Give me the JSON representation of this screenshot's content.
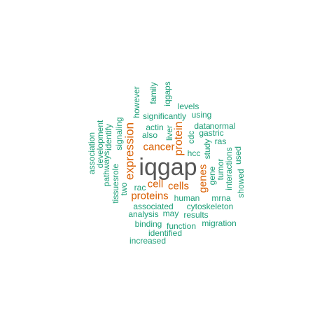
{
  "colors": {
    "primary": "#555555",
    "secondary": "#d95f02",
    "tertiary": "#1b9e77"
  },
  "words": [
    {
      "text": "iqgap",
      "tier": "primary"
    },
    {
      "text": "expression",
      "tier": "secondary"
    },
    {
      "text": "protein",
      "tier": "secondary"
    },
    {
      "text": "cancer",
      "tier": "secondary"
    },
    {
      "text": "cell",
      "tier": "secondary"
    },
    {
      "text": "cells",
      "tier": "secondary"
    },
    {
      "text": "proteins",
      "tier": "secondary"
    },
    {
      "text": "genes",
      "tier": "secondary"
    },
    {
      "text": "family",
      "tier": "tertiary"
    },
    {
      "text": "iqgaps",
      "tier": "tertiary"
    },
    {
      "text": "however",
      "tier": "tertiary"
    },
    {
      "text": "levels",
      "tier": "tertiary"
    },
    {
      "text": "significantly",
      "tier": "tertiary"
    },
    {
      "text": "using",
      "tier": "tertiary"
    },
    {
      "text": "actin",
      "tier": "tertiary"
    },
    {
      "text": "also",
      "tier": "tertiary"
    },
    {
      "text": "liver",
      "tier": "tertiary"
    },
    {
      "text": "data",
      "tier": "tertiary"
    },
    {
      "text": "normal",
      "tier": "tertiary"
    },
    {
      "text": "gastric",
      "tier": "tertiary"
    },
    {
      "text": "cdc",
      "tier": "tertiary"
    },
    {
      "text": "ras",
      "tier": "tertiary"
    },
    {
      "text": "study",
      "tier": "tertiary"
    },
    {
      "text": "hcc",
      "tier": "tertiary"
    },
    {
      "text": "signaling",
      "tier": "tertiary"
    },
    {
      "text": "identify",
      "tier": "tertiary"
    },
    {
      "text": "development",
      "tier": "tertiary"
    },
    {
      "text": "association",
      "tier": "tertiary"
    },
    {
      "text": "pathways",
      "tier": "tertiary"
    },
    {
      "text": "role",
      "tier": "tertiary"
    },
    {
      "text": "tissues",
      "tier": "tertiary"
    },
    {
      "text": "two",
      "tier": "tertiary"
    },
    {
      "text": "rac",
      "tier": "tertiary"
    },
    {
      "text": "gene",
      "tier": "tertiary"
    },
    {
      "text": "tumor",
      "tier": "tertiary"
    },
    {
      "text": "interactions",
      "tier": "tertiary"
    },
    {
      "text": "used",
      "tier": "tertiary"
    },
    {
      "text": "showed",
      "tier": "tertiary"
    },
    {
      "text": "human",
      "tier": "tertiary"
    },
    {
      "text": "mrna",
      "tier": "tertiary"
    },
    {
      "text": "associated",
      "tier": "tertiary"
    },
    {
      "text": "cytoskeleton",
      "tier": "tertiary"
    },
    {
      "text": "analysis",
      "tier": "tertiary"
    },
    {
      "text": "may",
      "tier": "tertiary"
    },
    {
      "text": "results",
      "tier": "tertiary"
    },
    {
      "text": "binding",
      "tier": "tertiary"
    },
    {
      "text": "function",
      "tier": "tertiary"
    },
    {
      "text": "migration",
      "tier": "tertiary"
    },
    {
      "text": "identified",
      "tier": "tertiary"
    },
    {
      "text": "increased",
      "tier": "tertiary"
    }
  ]
}
